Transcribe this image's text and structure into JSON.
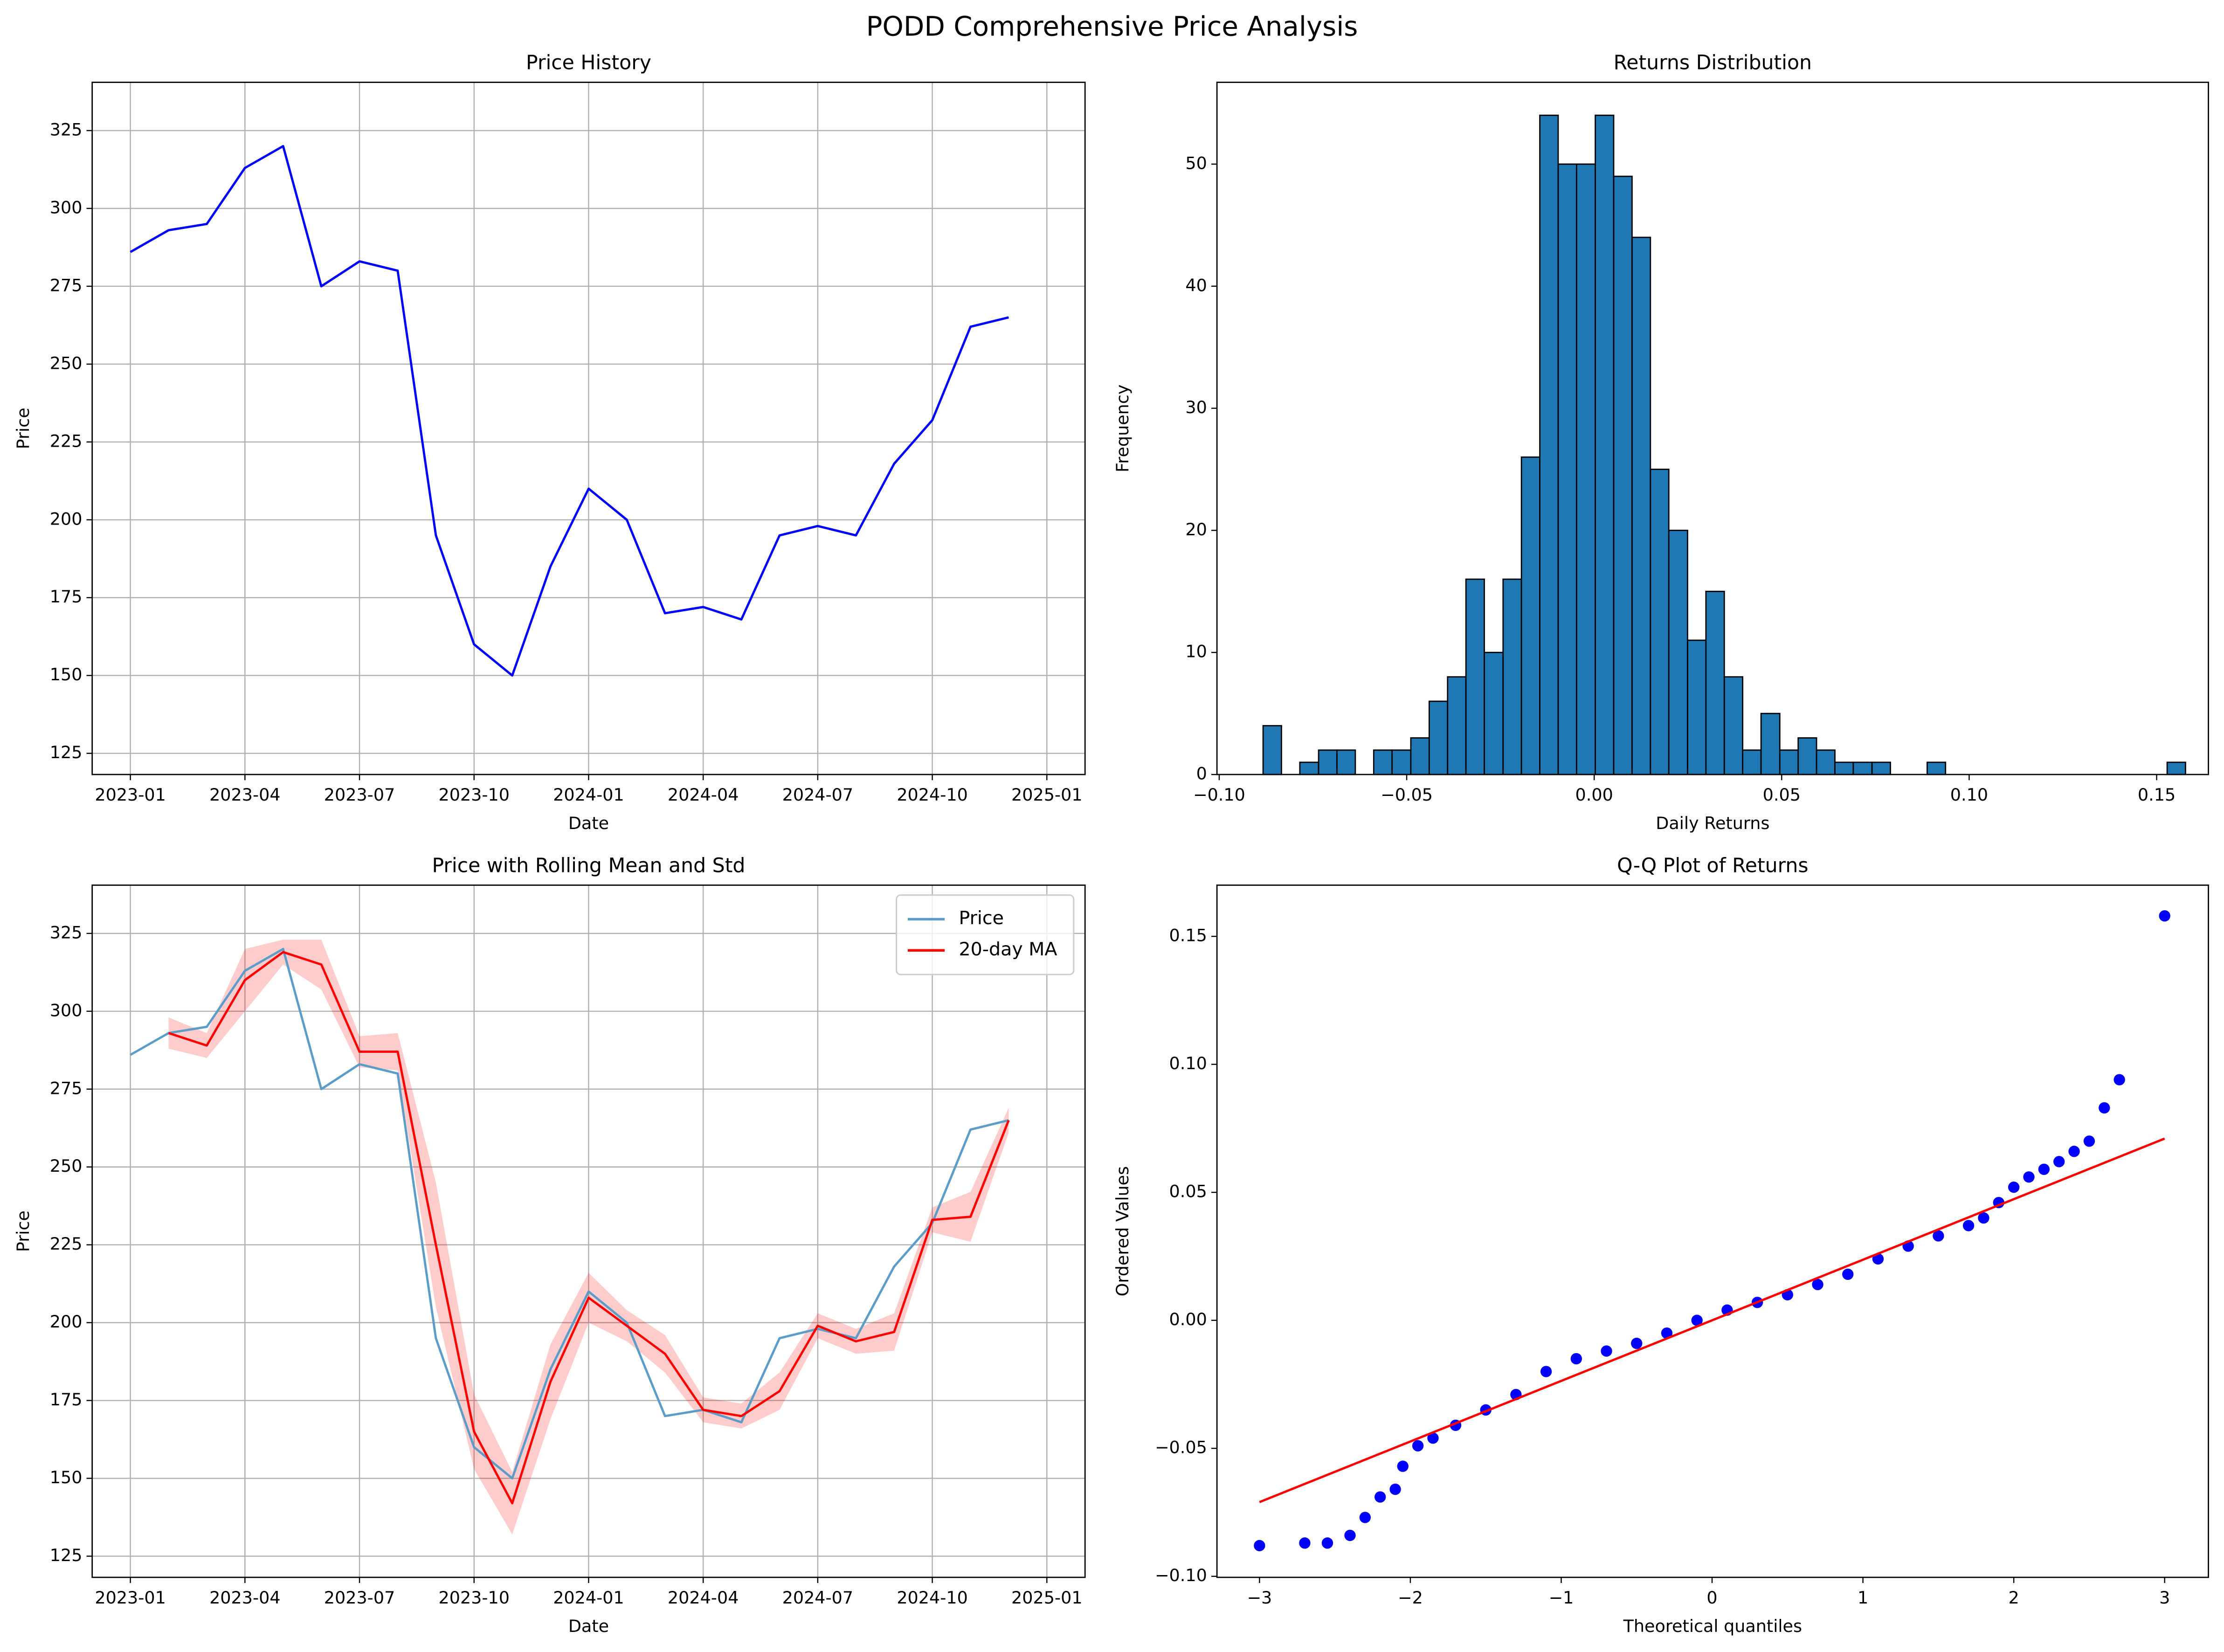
{
  "title": "PODD Comprehensive Price Analysis",
  "chart_data": [
    {
      "type": "line",
      "title": "Price History",
      "x_label": "Date",
      "y_label": "Price",
      "grid": true,
      "x": [
        "2023-01",
        "2023-02",
        "2023-03",
        "2023-04",
        "2023-05",
        "2023-06",
        "2023-07",
        "2023-08",
        "2023-09",
        "2023-10",
        "2023-11",
        "2023-12",
        "2024-01",
        "2024-02",
        "2024-03",
        "2024-04",
        "2024-05",
        "2024-06",
        "2024-07",
        "2024-08",
        "2024-09",
        "2024-10",
        "2024-11",
        "2024-12"
      ],
      "series": [
        {
          "color": "#0000ff",
          "values": [
            286,
            293,
            295,
            313,
            320,
            275,
            283,
            280,
            195,
            160,
            150,
            185,
            210,
            200,
            170,
            172,
            168,
            195,
            198,
            195,
            218,
            232,
            262,
            265
          ]
        }
      ],
      "xlim": [
        "2022-12",
        "2025-02"
      ],
      "xticks": [
        "2023-01",
        "2023-04",
        "2023-07",
        "2023-10",
        "2024-01",
        "2024-04",
        "2024-07",
        "2024-10",
        "2025-01"
      ],
      "ylim": [
        118.2,
        340.5
      ],
      "yticks": [
        125,
        150,
        175,
        200,
        225,
        250,
        275,
        300,
        325
      ]
    },
    {
      "type": "histogram",
      "title": "Returns Distribution",
      "x_label": "Daily Returns",
      "y_label": "Frequency",
      "grid": false,
      "color": "#1f77b4",
      "edgecolor": "#000000",
      "bins": [
        -0.0883,
        -0.0834,
        -0.0785,
        -0.0735,
        -0.0686,
        -0.0637,
        -0.0588,
        -0.0539,
        -0.0489,
        -0.044,
        -0.0391,
        -0.0342,
        -0.0293,
        -0.0243,
        -0.0194,
        -0.0145,
        -0.0096,
        -0.0047,
        0.0003,
        0.0052,
        0.0101,
        0.015,
        0.0199,
        0.0249,
        0.0298,
        0.0347,
        0.0396,
        0.0445,
        0.0495,
        0.0544,
        0.0593,
        0.0642,
        0.0691,
        0.0741,
        0.079,
        0.0839,
        0.0888,
        0.0937,
        0.0987,
        0.1036,
        0.1085,
        0.1134,
        0.1183,
        0.1233,
        0.1282,
        0.1331,
        0.138,
        0.1429,
        0.1479,
        0.1528,
        0.1577
      ],
      "counts": [
        4,
        0,
        1,
        2,
        2,
        0,
        2,
        2,
        3,
        6,
        8,
        16,
        10,
        16,
        26,
        54,
        50,
        50,
        54,
        49,
        44,
        25,
        20,
        11,
        15,
        8,
        2,
        5,
        2,
        3,
        2,
        1,
        1,
        1,
        0,
        0,
        1,
        0,
        0,
        0,
        0,
        0,
        0,
        0,
        0,
        0,
        0,
        0,
        0,
        1
      ],
      "xlim": [
        -0.1006,
        0.1638
      ],
      "xticks": [
        {
          "value": -0.1,
          "label": "−0.10"
        },
        {
          "value": -0.05,
          "label": "−0.05"
        },
        {
          "value": 0,
          "label": "0.00"
        },
        {
          "value": 0.05,
          "label": "0.05"
        },
        {
          "value": 0.1,
          "label": "0.10"
        },
        {
          "value": 0.15,
          "label": "0.15"
        }
      ],
      "ylim": [
        0,
        56.7
      ],
      "yticks": [
        0,
        10,
        20,
        30,
        40,
        50
      ]
    },
    {
      "type": "line",
      "title": "Price with Rolling Mean and Std",
      "x_label": "Date",
      "y_label": "Price",
      "grid": true,
      "legend": "upper right",
      "x": [
        "2023-01",
        "2023-02",
        "2023-03",
        "2023-04",
        "2023-05",
        "2023-06",
        "2023-07",
        "2023-08",
        "2023-09",
        "2023-10",
        "2023-11",
        "2023-12",
        "2024-01",
        "2024-02",
        "2024-03",
        "2024-04",
        "2024-05",
        "2024-06",
        "2024-07",
        "2024-08",
        "2024-09",
        "2024-10",
        "2024-11",
        "2024-12"
      ],
      "series": [
        {
          "name": "Price",
          "color": "#5b9cc9",
          "values": [
            286,
            293,
            295,
            313,
            320,
            275,
            283,
            280,
            195,
            160,
            150,
            185,
            210,
            200,
            170,
            172,
            168,
            195,
            198,
            195,
            218,
            232,
            262,
            265
          ]
        },
        {
          "name": "20-day MA",
          "color": "#ff0000",
          "values": [
            null,
            293,
            289,
            310,
            319,
            315,
            287,
            287,
            225,
            165,
            142,
            181,
            208,
            199,
            190,
            172,
            170,
            178,
            199,
            194,
            197,
            233,
            234,
            265
          ]
        }
      ],
      "band": {
        "color": "#ff0000",
        "lower": [
          null,
          288,
          285,
          300,
          315,
          307,
          282,
          281,
          205,
          153,
          132,
          169,
          200,
          194,
          184,
          168,
          166,
          172,
          195,
          190,
          191,
          229,
          226,
          261
        ],
        "upper": [
          null,
          298,
          293,
          320,
          323,
          323,
          292,
          293,
          245,
          177,
          152,
          193,
          216,
          204,
          196,
          176,
          174,
          184,
          203,
          198,
          203,
          237,
          242,
          269
        ]
      },
      "xlim": [
        "2022-12",
        "2025-02"
      ],
      "xticks": [
        "2023-01",
        "2023-04",
        "2023-07",
        "2023-10",
        "2024-01",
        "2024-04",
        "2024-07",
        "2024-10",
        "2025-01"
      ],
      "ylim": [
        118.2,
        340.5
      ],
      "yticks": [
        125,
        150,
        175,
        200,
        225,
        250,
        275,
        300,
        325
      ]
    },
    {
      "type": "scatter",
      "title": "Q-Q Plot of Returns",
      "x_label": "Theoretical quantiles",
      "y_label": "Ordered Values",
      "grid": false,
      "color": "#0000ff",
      "x": [
        -3.0,
        -2.7,
        -2.55,
        -2.4,
        -2.3,
        -2.2,
        -2.1,
        -2.05,
        -1.95,
        -1.85,
        -1.7,
        -1.5,
        -1.3,
        -1.1,
        -0.9,
        -0.7,
        -0.5,
        -0.3,
        -0.1,
        0.1,
        0.3,
        0.5,
        0.7,
        0.9,
        1.1,
        1.3,
        1.5,
        1.7,
        1.8,
        1.9,
        2.0,
        2.1,
        2.2,
        2.3,
        2.4,
        2.5,
        2.6,
        2.7,
        3.0
      ],
      "values": [
        -0.088,
        -0.087,
        -0.087,
        -0.084,
        -0.077,
        -0.069,
        -0.066,
        -0.057,
        -0.049,
        -0.046,
        -0.041,
        -0.035,
        -0.029,
        -0.02,
        -0.015,
        -0.012,
        -0.009,
        -0.005,
        0.0,
        0.004,
        0.007,
        0.01,
        0.014,
        0.018,
        0.024,
        0.029,
        0.033,
        0.037,
        0.04,
        0.046,
        0.052,
        0.056,
        0.059,
        0.062,
        0.066,
        0.07,
        0.083,
        0.094,
        0.158
      ],
      "fit_line": {
        "color": "#ff0000",
        "x": [
          -3,
          3
        ],
        "values": [
          -0.071,
          0.071
        ]
      },
      "xlim": [
        -3.282,
        3.29
      ],
      "xticks": [
        {
          "value": -3,
          "label": "−3"
        },
        {
          "value": -2,
          "label": "−2"
        },
        {
          "value": -1,
          "label": "−1"
        },
        0,
        1,
        2,
        3
      ],
      "ylim": [
        -0.1004,
        0.17
      ],
      "yticks": [
        {
          "value": -0.1,
          "label": "−0.10"
        },
        {
          "value": -0.05,
          "label": "−0.05"
        },
        {
          "value": 0,
          "label": "0.00"
        },
        {
          "value": 0.05,
          "label": "0.05"
        },
        {
          "value": 0.1,
          "label": "0.10"
        },
        {
          "value": 0.15,
          "label": "0.15"
        }
      ]
    }
  ]
}
